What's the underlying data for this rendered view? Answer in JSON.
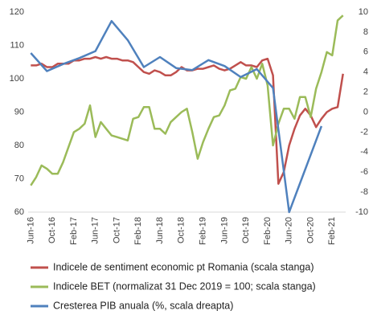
{
  "chart_data": {
    "type": "line",
    "categories": [
      "Jun-16",
      null,
      null,
      null,
      "Oct-16",
      null,
      null,
      null,
      "Feb-17",
      null,
      null,
      null,
      "Jun-17",
      null,
      null,
      null,
      "Oct-17",
      null,
      null,
      null,
      "Feb-18",
      null,
      null,
      null,
      "Jun-18",
      null,
      null,
      null,
      "Oct-18",
      null,
      null,
      null,
      "Feb-19",
      null,
      null,
      null,
      "Jun-19",
      null,
      null,
      null,
      "Oct-19",
      null,
      null,
      null,
      "Feb-20",
      null,
      null,
      null,
      "Jun-20",
      null,
      null,
      null,
      "Oct-20",
      null,
      null,
      null,
      "Feb-21",
      null,
      null
    ],
    "ylim": [
      60,
      120
    ],
    "yticks": [
      60,
      70,
      80,
      90,
      100,
      110,
      120
    ],
    "y2lim": [
      -10,
      10
    ],
    "y2ticks": [
      -10,
      -8,
      -6,
      -4,
      -2,
      0,
      2,
      4,
      6,
      8,
      10
    ],
    "grid": false,
    "series": [
      {
        "name": "Indicele de sentiment economic pt Romania (scala stanga)",
        "color": "#c0504d",
        "values": [
          104,
          104,
          104.5,
          103.5,
          103.5,
          104.5,
          104.5,
          104.5,
          105.5,
          105.5,
          106,
          106,
          106.5,
          106,
          106.5,
          106,
          106,
          105.5,
          105.5,
          105,
          103.5,
          102,
          101.5,
          102.5,
          102,
          101,
          101,
          102,
          103.5,
          102.5,
          102.5,
          103,
          103,
          103.5,
          104,
          103,
          102.5,
          103,
          104,
          105,
          104,
          104,
          103.5,
          105.5,
          106,
          101,
          68.5,
          72,
          80,
          85,
          89,
          91,
          89,
          85.5,
          88,
          90,
          91,
          91.5,
          101.5
        ]
      },
      {
        "name": "Indicele BET (normalizat 31 Dec 2019 = 100; scala stanga)",
        "color": "#9bbb59",
        "values": [
          68,
          70.5,
          74,
          73,
          71.5,
          71.5,
          75,
          79.5,
          84,
          85,
          86.5,
          92,
          82.5,
          87,
          85,
          83,
          82.5,
          82,
          81.5,
          88,
          88.5,
          91.5,
          91.5,
          85,
          85,
          83.5,
          87,
          88.5,
          90,
          91,
          84,
          76,
          81,
          85,
          88.5,
          89,
          92,
          96.5,
          97,
          100.5,
          100,
          103.5,
          100,
          104.5,
          98,
          80,
          86.5,
          91,
          91,
          88,
          94.5,
          94.5,
          88.5,
          97,
          102,
          108,
          107,
          117.5,
          119
        ]
      },
      {
        "name": "Cresterea PIB anuala (%, scala dreapta)",
        "color": "#4f81bd",
        "axis": "y2",
        "x": [
          "Jun-16",
          "Sep-16",
          "Dec-16",
          "Mar-17",
          "Jun-17",
          "Sep-17",
          "Dec-17",
          "Mar-18",
          "Jun-18",
          "Sep-18",
          "Dec-18",
          "Mar-19",
          "Jun-19",
          "Sep-19",
          "Dec-19",
          "Mar-20",
          "Jun-20",
          "Sep-20",
          "Dec-20"
        ],
        "values": [
          5.9,
          4.1,
          4.8,
          5.4,
          6.1,
          9.1,
          7.2,
          4.5,
          5.5,
          4.4,
          4.2,
          5.2,
          4.6,
          3.5,
          4.3,
          2.4,
          -10,
          -5.7,
          -1.4
        ]
      }
    ]
  }
}
